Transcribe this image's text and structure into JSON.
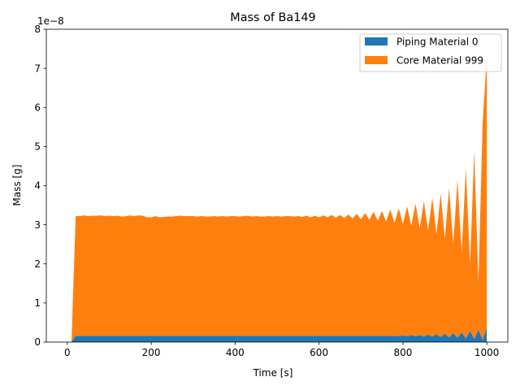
{
  "chart_data": {
    "type": "area",
    "stacked": true,
    "title": "Mass of Ba149",
    "xlabel": "Time [s]",
    "ylabel": "Mass [g]",
    "y_offset_label": "1e−8",
    "y_scale": 1e-08,
    "xlim": [
      -50,
      1050
    ],
    "ylim": [
      0,
      8
    ],
    "x_ticks": [
      0,
      200,
      400,
      600,
      800,
      1000
    ],
    "x_tick_labels": [
      "0",
      "200",
      "400",
      "600",
      "800",
      "1000"
    ],
    "y_ticks": [
      0,
      1,
      2,
      3,
      4,
      5,
      6,
      7,
      8
    ],
    "y_tick_labels": [
      "0",
      "1",
      "2",
      "3",
      "4",
      "5",
      "6",
      "7",
      "8"
    ],
    "grid": false,
    "legend_position": "upper-right",
    "x": [
      0,
      10,
      20,
      30,
      40,
      50,
      60,
      70,
      80,
      90,
      100,
      110,
      120,
      130,
      140,
      150,
      160,
      170,
      180,
      190,
      200,
      210,
      220,
      230,
      240,
      250,
      260,
      270,
      280,
      290,
      300,
      310,
      320,
      330,
      340,
      350,
      360,
      370,
      380,
      390,
      400,
      410,
      420,
      430,
      440,
      450,
      460,
      470,
      480,
      490,
      500,
      510,
      520,
      530,
      540,
      550,
      560,
      570,
      580,
      590,
      600,
      610,
      620,
      630,
      640,
      650,
      660,
      670,
      680,
      690,
      700,
      710,
      720,
      730,
      740,
      750,
      760,
      770,
      780,
      790,
      800,
      810,
      820,
      830,
      840,
      850,
      860,
      870,
      880,
      890,
      900,
      910,
      920,
      930,
      940,
      950,
      960,
      970,
      980,
      990,
      1000
    ],
    "series": [
      {
        "name": "Piping Material 0",
        "color": "#1f77b4",
        "values": [
          0,
          0,
          0.16,
          0.16,
          0.16,
          0.16,
          0.16,
          0.16,
          0.16,
          0.16,
          0.16,
          0.16,
          0.16,
          0.16,
          0.16,
          0.16,
          0.16,
          0.16,
          0.16,
          0.16,
          0.16,
          0.16,
          0.16,
          0.16,
          0.16,
          0.16,
          0.16,
          0.16,
          0.16,
          0.16,
          0.16,
          0.16,
          0.16,
          0.16,
          0.16,
          0.16,
          0.16,
          0.16,
          0.16,
          0.16,
          0.16,
          0.16,
          0.16,
          0.16,
          0.16,
          0.16,
          0.16,
          0.16,
          0.16,
          0.16,
          0.16,
          0.16,
          0.16,
          0.16,
          0.16,
          0.16,
          0.16,
          0.16,
          0.16,
          0.16,
          0.16,
          0.16,
          0.16,
          0.16,
          0.16,
          0.16,
          0.16,
          0.16,
          0.16,
          0.16,
          0.16,
          0.16,
          0.16,
          0.16,
          0.16,
          0.16,
          0.16,
          0.16,
          0.16,
          0.15,
          0.17,
          0.15,
          0.18,
          0.15,
          0.18,
          0.14,
          0.19,
          0.14,
          0.2,
          0.13,
          0.21,
          0.12,
          0.23,
          0.11,
          0.25,
          0.1,
          0.28,
          0.08,
          0.31,
          0.06,
          0.36
        ]
      },
      {
        "name": "Core Material 999",
        "color": "#ff7f0e",
        "values": [
          0,
          0,
          3.06,
          3.06,
          3.08,
          3.06,
          3.07,
          3.07,
          3.08,
          3.06,
          3.07,
          3.06,
          3.07,
          3.05,
          3.06,
          3.08,
          3.06,
          3.08,
          3.07,
          3.03,
          3.03,
          3.06,
          3.03,
          3.04,
          3.05,
          3.05,
          3.06,
          3.07,
          3.06,
          3.06,
          3.06,
          3.05,
          3.06,
          3.05,
          3.05,
          3.06,
          3.05,
          3.06,
          3.05,
          3.06,
          3.06,
          3.05,
          3.06,
          3.07,
          3.05,
          3.06,
          3.05,
          3.05,
          3.06,
          3.05,
          3.06,
          3.05,
          3.06,
          3.06,
          3.05,
          3.06,
          3.04,
          3.07,
          3.03,
          3.07,
          3.03,
          3.08,
          3.03,
          3.09,
          3.02,
          3.09,
          3.01,
          3.1,
          3.0,
          3.12,
          2.98,
          3.14,
          2.97,
          3.17,
          2.95,
          3.19,
          2.92,
          3.23,
          2.89,
          3.27,
          2.85,
          3.32,
          2.8,
          3.39,
          2.74,
          3.46,
          2.66,
          3.55,
          2.56,
          3.67,
          2.44,
          3.82,
          2.27,
          4.04,
          2.05,
          4.34,
          1.73,
          4.8,
          1.23,
          5.55,
          6.95
        ]
      }
    ]
  }
}
